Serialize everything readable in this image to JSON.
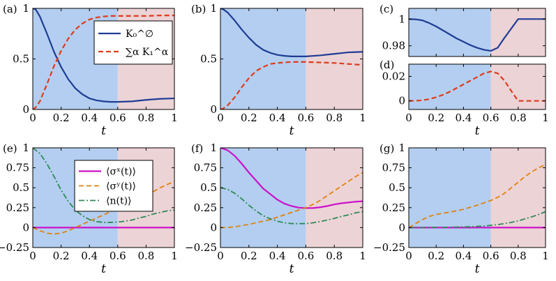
{
  "colors": {
    "blue_region": "#b3cef0",
    "red_region": "#ecd3d6",
    "dark_blue": "#1f3c94",
    "red": "#e03a1c",
    "magenta": "#cc11cc",
    "orange": "#e0820c",
    "green": "#2f8a55"
  },
  "chart_data": [
    {
      "id": "a",
      "panel_label": "(a)",
      "type": "line",
      "xlabel": "t",
      "xlim": [
        0,
        1
      ],
      "ylim": [
        0,
        1
      ],
      "xticks": [
        "0",
        "0.2",
        "0.4",
        "0.6",
        "0.8",
        "1"
      ],
      "yticks": [
        {
          "v": 0,
          "label": "0"
        },
        {
          "v": 0.5,
          "label": "0.5"
        },
        {
          "v": 1,
          "label": "1"
        }
      ],
      "regions": [
        {
          "from": 0,
          "to": 0.6,
          "color": "blue"
        },
        {
          "from": 0.6,
          "to": 1,
          "color": "red"
        }
      ],
      "legend": {
        "position": "top-right",
        "entries": [
          {
            "series": 0,
            "label": "K₀^∅"
          },
          {
            "series": 1,
            "label": "∑α K₁^α"
          }
        ]
      },
      "series": [
        {
          "name": "K₀^∅",
          "color": "dark_blue",
          "dash": "solid",
          "x": [
            0,
            0.02,
            0.05,
            0.1,
            0.15,
            0.2,
            0.25,
            0.3,
            0.35,
            0.4,
            0.45,
            0.5,
            0.55,
            0.6,
            0.7,
            0.8,
            0.9,
            1.0
          ],
          "y": [
            1,
            0.99,
            0.92,
            0.75,
            0.57,
            0.42,
            0.3,
            0.21,
            0.15,
            0.11,
            0.09,
            0.08,
            0.075,
            0.075,
            0.08,
            0.095,
            0.105,
            0.11
          ]
        },
        {
          "name": "∑α K₁^α",
          "color": "red",
          "dash": "dashed",
          "x": [
            0,
            0.02,
            0.05,
            0.1,
            0.15,
            0.2,
            0.25,
            0.3,
            0.35,
            0.4,
            0.45,
            0.5,
            0.55,
            0.6,
            0.7,
            0.8,
            0.9,
            1.0
          ],
          "y": [
            0,
            0.02,
            0.08,
            0.25,
            0.43,
            0.58,
            0.7,
            0.79,
            0.85,
            0.89,
            0.91,
            0.92,
            0.925,
            0.925,
            0.925,
            0.925,
            0.93,
            0.93
          ]
        }
      ]
    },
    {
      "id": "b",
      "panel_label": "(b)",
      "type": "line",
      "xlabel": "t",
      "xlim": [
        0,
        1
      ],
      "ylim": [
        0,
        1
      ],
      "xticks": [
        "0",
        "0.2",
        "0.4",
        "0.6",
        "0.8",
        "1"
      ],
      "yticks": [
        {
          "v": 0,
          "label": "0"
        },
        {
          "v": 0.5,
          "label": "0.5"
        },
        {
          "v": 1,
          "label": "1"
        }
      ],
      "regions": [
        {
          "from": 0,
          "to": 0.6,
          "color": "blue"
        },
        {
          "from": 0.6,
          "to": 1,
          "color": "red"
        }
      ],
      "series": [
        {
          "name": "K₀^∅",
          "color": "dark_blue",
          "dash": "solid",
          "x": [
            0,
            0.02,
            0.05,
            0.1,
            0.15,
            0.2,
            0.25,
            0.3,
            0.35,
            0.4,
            0.45,
            0.5,
            0.55,
            0.6,
            0.7,
            0.8,
            0.9,
            1.0
          ],
          "y": [
            1,
            0.99,
            0.96,
            0.88,
            0.79,
            0.71,
            0.64,
            0.59,
            0.56,
            0.54,
            0.53,
            0.525,
            0.525,
            0.525,
            0.535,
            0.55,
            0.565,
            0.57
          ]
        },
        {
          "name": "∑α K₁^α",
          "color": "red",
          "dash": "dashed",
          "x": [
            0,
            0.02,
            0.05,
            0.1,
            0.15,
            0.2,
            0.25,
            0.3,
            0.35,
            0.4,
            0.45,
            0.5,
            0.55,
            0.6,
            0.7,
            0.8,
            0.9,
            1.0
          ],
          "y": [
            0,
            0.01,
            0.04,
            0.12,
            0.22,
            0.31,
            0.38,
            0.42,
            0.45,
            0.46,
            0.465,
            0.47,
            0.47,
            0.47,
            0.465,
            0.46,
            0.45,
            0.44
          ]
        }
      ]
    },
    {
      "id": "c",
      "panel_label": "(c)",
      "type": "line",
      "xlabel": "",
      "xlim": [
        0,
        1
      ],
      "ylim": [
        0.972,
        1.008
      ],
      "xticks": [],
      "yticks": [
        {
          "v": 0.98,
          "label": "0.98"
        },
        {
          "v": 1,
          "label": "1"
        }
      ],
      "regions": [
        {
          "from": 0,
          "to": 0.6,
          "color": "blue"
        },
        {
          "from": 0.6,
          "to": 1,
          "color": "red"
        }
      ],
      "series": [
        {
          "name": "K₀^∅",
          "color": "dark_blue",
          "dash": "solid",
          "x": [
            0,
            0.05,
            0.1,
            0.15,
            0.2,
            0.25,
            0.3,
            0.35,
            0.4,
            0.45,
            0.5,
            0.55,
            0.6,
            0.65,
            0.7,
            0.75,
            0.8,
            0.85,
            0.9,
            1.0
          ],
          "y": [
            1,
            0.9998,
            0.999,
            0.997,
            0.9945,
            0.9915,
            0.9885,
            0.9855,
            0.983,
            0.9805,
            0.9785,
            0.977,
            0.9762,
            0.9785,
            0.986,
            0.993,
            1.0,
            1.0,
            1.0,
            1.0
          ]
        }
      ]
    },
    {
      "id": "d",
      "panel_label": "(d)",
      "type": "line",
      "xlabel": "t",
      "xlim": [
        0,
        1
      ],
      "ylim": [
        -0.007,
        0.03
      ],
      "xticks": [
        "0",
        "0.2",
        "0.4",
        "0.6",
        "0.8",
        "1"
      ],
      "yticks": [
        {
          "v": 0,
          "label": "0"
        },
        {
          "v": 0.02,
          "label": "0.02"
        }
      ],
      "regions": [
        {
          "from": 0,
          "to": 0.6,
          "color": "blue"
        },
        {
          "from": 0.6,
          "to": 1,
          "color": "red"
        }
      ],
      "series": [
        {
          "name": "∑α K₁^α",
          "color": "red",
          "dash": "dashed",
          "x": [
            0,
            0.05,
            0.1,
            0.15,
            0.2,
            0.25,
            0.3,
            0.35,
            0.4,
            0.45,
            0.5,
            0.55,
            0.6,
            0.65,
            0.7,
            0.75,
            0.8,
            0.85,
            0.9,
            1.0
          ],
          "y": [
            0,
            0.0001,
            0.0005,
            0.0015,
            0.003,
            0.005,
            0.0075,
            0.0105,
            0.0135,
            0.0165,
            0.0195,
            0.0225,
            0.024,
            0.0225,
            0.0165,
            0.008,
            0.0,
            0.0,
            0.0,
            0.0
          ]
        }
      ]
    },
    {
      "id": "e",
      "panel_label": "(e)",
      "type": "line",
      "xlabel": "t",
      "xlim": [
        0,
        1
      ],
      "ylim": [
        -0.25,
        1
      ],
      "xticks": [
        "0",
        "0.2",
        "0.4",
        "0.6",
        "0.8",
        "1"
      ],
      "yticks": [
        {
          "v": -0.25,
          "label": "−0.25"
        },
        {
          "v": 0,
          "label": "0"
        },
        {
          "v": 0.25,
          "label": "0.25"
        },
        {
          "v": 0.5,
          "label": "0.5"
        },
        {
          "v": 0.75,
          "label": "0.75"
        },
        {
          "v": 1,
          "label": "1"
        }
      ],
      "regions": [
        {
          "from": 0,
          "to": 0.6,
          "color": "blue"
        },
        {
          "from": 0.6,
          "to": 1,
          "color": "red"
        }
      ],
      "legend": {
        "position": "top-right",
        "entries": [
          {
            "series": 0,
            "label": "⟨σˣ(t)⟩"
          },
          {
            "series": 1,
            "label": "⟨σʸ(t)⟩"
          },
          {
            "series": 2,
            "label": "⟨n(t)⟩"
          }
        ]
      },
      "series": [
        {
          "name": "⟨σˣ(t)⟩",
          "color": "magenta",
          "dash": "solid",
          "x": [
            0,
            0.5,
            1.0
          ],
          "y": [
            0,
            0,
            0
          ]
        },
        {
          "name": "⟨σʸ(t)⟩",
          "color": "orange",
          "dash": "dashed",
          "x": [
            0,
            0.05,
            0.1,
            0.15,
            0.2,
            0.25,
            0.3,
            0.35,
            0.4,
            0.45,
            0.5,
            0.55,
            0.6,
            0.65,
            0.7,
            0.75,
            0.8,
            0.85,
            0.9,
            0.95,
            1.0
          ],
          "y": [
            0,
            -0.04,
            -0.07,
            -0.08,
            -0.07,
            -0.04,
            0.0,
            0.04,
            0.08,
            0.12,
            0.16,
            0.2,
            0.24,
            0.28,
            0.32,
            0.36,
            0.41,
            0.45,
            0.5,
            0.54,
            0.58
          ]
        },
        {
          "name": "⟨n(t)⟩",
          "color": "green",
          "dash": "dashdot",
          "x": [
            0,
            0.05,
            0.1,
            0.15,
            0.2,
            0.25,
            0.3,
            0.35,
            0.4,
            0.45,
            0.5,
            0.55,
            0.6,
            0.65,
            0.7,
            0.75,
            0.8,
            0.85,
            0.9,
            0.95,
            1.0
          ],
          "y": [
            1,
            0.93,
            0.8,
            0.64,
            0.47,
            0.33,
            0.22,
            0.15,
            0.1,
            0.075,
            0.065,
            0.065,
            0.07,
            0.08,
            0.095,
            0.12,
            0.14,
            0.17,
            0.19,
            0.21,
            0.22
          ]
        }
      ]
    },
    {
      "id": "f",
      "panel_label": "(f)",
      "type": "line",
      "xlabel": "t",
      "xlim": [
        0,
        1
      ],
      "ylim": [
        -0.25,
        1
      ],
      "xticks": [
        "0",
        "0.2",
        "0.4",
        "0.6",
        "0.8",
        "1"
      ],
      "yticks": [
        {
          "v": -0.25,
          "label": "−0.25"
        },
        {
          "v": 0,
          "label": "0"
        },
        {
          "v": 0.25,
          "label": "0.25"
        },
        {
          "v": 0.5,
          "label": "0.5"
        },
        {
          "v": 0.75,
          "label": "0.75"
        },
        {
          "v": 1,
          "label": "1"
        }
      ],
      "regions": [
        {
          "from": 0,
          "to": 0.6,
          "color": "blue"
        },
        {
          "from": 0.6,
          "to": 1,
          "color": "red"
        }
      ],
      "series": [
        {
          "name": "⟨σˣ(t)⟩",
          "color": "magenta",
          "dash": "solid",
          "x": [
            0,
            0.05,
            0.1,
            0.15,
            0.2,
            0.25,
            0.3,
            0.35,
            0.4,
            0.45,
            0.5,
            0.55,
            0.6,
            0.65,
            0.7,
            0.75,
            0.8,
            0.85,
            0.9,
            0.95,
            1.0
          ],
          "y": [
            1,
            0.97,
            0.9,
            0.8,
            0.69,
            0.59,
            0.49,
            0.42,
            0.35,
            0.3,
            0.27,
            0.25,
            0.245,
            0.245,
            0.255,
            0.27,
            0.29,
            0.305,
            0.315,
            0.325,
            0.33
          ]
        },
        {
          "name": "⟨σʸ(t)⟩",
          "color": "orange",
          "dash": "dashed",
          "x": [
            0,
            0.05,
            0.1,
            0.15,
            0.2,
            0.25,
            0.3,
            0.35,
            0.4,
            0.45,
            0.5,
            0.55,
            0.6,
            0.65,
            0.7,
            0.75,
            0.8,
            0.85,
            0.9,
            0.95,
            1.0
          ],
          "y": [
            0,
            0.0,
            0.01,
            0.025,
            0.04,
            0.06,
            0.08,
            0.1,
            0.13,
            0.16,
            0.19,
            0.22,
            0.25,
            0.29,
            0.34,
            0.4,
            0.46,
            0.52,
            0.58,
            0.64,
            0.69
          ]
        },
        {
          "name": "⟨n(t)⟩",
          "color": "green",
          "dash": "dashdot",
          "x": [
            0,
            0.05,
            0.1,
            0.15,
            0.2,
            0.25,
            0.3,
            0.35,
            0.4,
            0.45,
            0.5,
            0.55,
            0.6,
            0.65,
            0.7,
            0.75,
            0.8,
            0.85,
            0.9,
            0.95,
            1.0
          ],
          "y": [
            0.5,
            0.48,
            0.43,
            0.36,
            0.28,
            0.21,
            0.15,
            0.11,
            0.08,
            0.06,
            0.05,
            0.05,
            0.05,
            0.06,
            0.075,
            0.095,
            0.115,
            0.14,
            0.16,
            0.185,
            0.2
          ]
        }
      ]
    },
    {
      "id": "g",
      "panel_label": "(g)",
      "type": "line",
      "xlabel": "t",
      "xlim": [
        0,
        1
      ],
      "ylim": [
        -0.25,
        1
      ],
      "xticks": [
        "0",
        "0.2",
        "0.4",
        "0.6",
        "0.8",
        "1"
      ],
      "yticks": [
        {
          "v": -0.25,
          "label": "−0.25"
        },
        {
          "v": 0,
          "label": "0"
        },
        {
          "v": 0.25,
          "label": "0.25"
        },
        {
          "v": 0.5,
          "label": "0.5"
        },
        {
          "v": 0.75,
          "label": "0.75"
        },
        {
          "v": 1,
          "label": "1"
        }
      ],
      "regions": [
        {
          "from": 0,
          "to": 0.6,
          "color": "blue"
        },
        {
          "from": 0.6,
          "to": 1,
          "color": "red"
        }
      ],
      "series": [
        {
          "name": "⟨σˣ(t)⟩",
          "color": "magenta",
          "dash": "solid",
          "x": [
            0,
            0.5,
            1.0
          ],
          "y": [
            0,
            0,
            0
          ]
        },
        {
          "name": "⟨σʸ(t)⟩",
          "color": "orange",
          "dash": "dashed",
          "x": [
            0,
            0.05,
            0.1,
            0.15,
            0.2,
            0.25,
            0.3,
            0.35,
            0.4,
            0.45,
            0.5,
            0.55,
            0.6,
            0.65,
            0.7,
            0.75,
            0.8,
            0.85,
            0.9,
            0.95,
            1.0
          ],
          "y": [
            0,
            0.05,
            0.1,
            0.14,
            0.165,
            0.18,
            0.195,
            0.21,
            0.23,
            0.255,
            0.28,
            0.31,
            0.34,
            0.38,
            0.43,
            0.5,
            0.57,
            0.64,
            0.7,
            0.75,
            0.79
          ]
        },
        {
          "name": "⟨n(t)⟩",
          "color": "green",
          "dash": "dashdot",
          "x": [
            0,
            0.1,
            0.2,
            0.3,
            0.4,
            0.45,
            0.5,
            0.55,
            0.6,
            0.65,
            0.7,
            0.75,
            0.8,
            0.85,
            0.9,
            0.95,
            1.0
          ],
          "y": [
            0,
            0.0,
            0.002,
            0.004,
            0.008,
            0.011,
            0.015,
            0.02,
            0.028,
            0.038,
            0.05,
            0.065,
            0.085,
            0.11,
            0.135,
            0.165,
            0.2
          ]
        }
      ]
    }
  ]
}
